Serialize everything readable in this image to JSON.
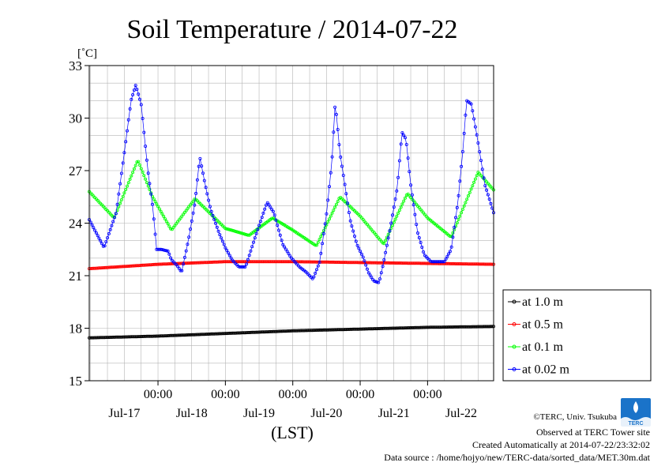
{
  "chart_data": {
    "type": "line",
    "title": "Soil Temperature / 2014-07-22",
    "ylabel": "[˚C]",
    "xlabel": "(LST)",
    "ylim": [
      15,
      33
    ],
    "yticks": [
      15,
      18,
      21,
      24,
      27,
      30,
      33
    ],
    "xlim_days": [
      -0.02,
      5.98
    ],
    "x_major_ticks": [
      {
        "label": "00:00",
        "date": "Jul-17",
        "day": 1
      },
      {
        "label": "00:00",
        "date": "Jul-18",
        "day": 2
      },
      {
        "label": "00:00",
        "date": "Jul-19",
        "day": 3
      },
      {
        "label": "00:00",
        "date": "Jul-20",
        "day": 4
      },
      {
        "label": "00:00",
        "date": "Jul-21",
        "day": 5
      }
    ],
    "x_date_labels": [
      {
        "text": "Jul-17",
        "day": 0.5
      },
      {
        "text": "Jul-18",
        "day": 1.5
      },
      {
        "text": "Jul-19",
        "day": 2.5
      },
      {
        "text": "Jul-20",
        "day": 3.5
      },
      {
        "text": "Jul-21",
        "day": 4.5
      },
      {
        "text": "Jul-22",
        "day": 5.5
      }
    ],
    "grid": true,
    "legend_position": "right",
    "series": [
      {
        "name": "at 1.0 m",
        "color": "#000000",
        "points": [
          [
            -0.02,
            17.45
          ],
          [
            1,
            17.55
          ],
          [
            2,
            17.7
          ],
          [
            3,
            17.85
          ],
          [
            4,
            17.95
          ],
          [
            5,
            18.05
          ],
          [
            5.98,
            18.1
          ]
        ]
      },
      {
        "name": "at 0.5 m",
        "color": "#ff0000",
        "points": [
          [
            -0.02,
            21.4
          ],
          [
            1,
            21.65
          ],
          [
            2,
            21.8
          ],
          [
            3,
            21.8
          ],
          [
            4,
            21.75
          ],
          [
            5,
            21.7
          ],
          [
            5.98,
            21.65
          ]
        ]
      },
      {
        "name": "at 0.1 m",
        "color": "#00ff00",
        "points": [
          [
            -0.02,
            25.8
          ],
          [
            0.35,
            24.3
          ],
          [
            0.7,
            27.6
          ],
          [
            0.92,
            25.5
          ],
          [
            1.2,
            23.6
          ],
          [
            1.55,
            25.4
          ],
          [
            2.0,
            23.7
          ],
          [
            2.35,
            23.3
          ],
          [
            2.7,
            24.3
          ],
          [
            3.0,
            23.6
          ],
          [
            3.35,
            22.7
          ],
          [
            3.7,
            25.5
          ],
          [
            4.0,
            24.4
          ],
          [
            4.35,
            22.8
          ],
          [
            4.7,
            25.7
          ],
          [
            5.0,
            24.3
          ],
          [
            5.35,
            23.2
          ],
          [
            5.75,
            26.9
          ],
          [
            5.98,
            25.9
          ]
        ]
      },
      {
        "name": "at 0.02 m",
        "color": "#0000ff",
        "points": [
          [
            -0.02,
            24.2
          ],
          [
            0.2,
            22.6
          ],
          [
            0.38,
            24.6
          ],
          [
            0.5,
            28.0
          ],
          [
            0.6,
            31.0
          ],
          [
            0.67,
            31.9
          ],
          [
            0.75,
            30.8
          ],
          [
            0.85,
            27.0
          ],
          [
            0.92,
            25.0
          ],
          [
            0.98,
            22.5
          ],
          [
            1.05,
            22.5
          ],
          [
            1.15,
            22.4
          ],
          [
            1.2,
            21.9
          ],
          [
            1.28,
            21.6
          ],
          [
            1.35,
            21.2
          ],
          [
            1.45,
            23.0
          ],
          [
            1.55,
            25.2
          ],
          [
            1.62,
            27.8
          ],
          [
            1.7,
            26.2
          ],
          [
            1.78,
            24.8
          ],
          [
            1.9,
            23.5
          ],
          [
            2.0,
            22.6
          ],
          [
            2.1,
            21.9
          ],
          [
            2.2,
            21.5
          ],
          [
            2.3,
            21.5
          ],
          [
            2.45,
            23.3
          ],
          [
            2.62,
            25.2
          ],
          [
            2.72,
            24.6
          ],
          [
            2.85,
            22.8
          ],
          [
            2.98,
            22.0
          ],
          [
            3.1,
            21.5
          ],
          [
            3.2,
            21.2
          ],
          [
            3.3,
            20.8
          ],
          [
            3.4,
            21.8
          ],
          [
            3.5,
            24.5
          ],
          [
            3.58,
            27.5
          ],
          [
            3.63,
            30.9
          ],
          [
            3.7,
            28.0
          ],
          [
            3.78,
            26.0
          ],
          [
            3.85,
            24.2
          ],
          [
            3.95,
            22.8
          ],
          [
            4.05,
            22.0
          ],
          [
            4.12,
            21.2
          ],
          [
            4.2,
            20.7
          ],
          [
            4.28,
            20.6
          ],
          [
            4.35,
            21.8
          ],
          [
            4.45,
            23.8
          ],
          [
            4.55,
            26.0
          ],
          [
            4.62,
            29.2
          ],
          [
            4.68,
            28.8
          ],
          [
            4.75,
            26.2
          ],
          [
            4.85,
            23.5
          ],
          [
            4.95,
            22.2
          ],
          [
            5.05,
            21.8
          ],
          [
            5.15,
            21.8
          ],
          [
            5.25,
            21.8
          ],
          [
            5.35,
            22.5
          ],
          [
            5.45,
            25.2
          ],
          [
            5.52,
            28.0
          ],
          [
            5.58,
            31.0
          ],
          [
            5.65,
            30.8
          ],
          [
            5.75,
            28.6
          ],
          [
            5.85,
            26.2
          ],
          [
            5.98,
            24.6
          ]
        ]
      }
    ]
  },
  "footer": {
    "copyright": "©TERC, Univ. Tsukuba",
    "observed": "Observed at TERC Tower site",
    "created": "Created Automatically at 2014-07-22/23:32:02",
    "source": "Data source : /home/hojyo/new/TERC-data/sorted_data/MET.30m.dat",
    "logo_text": "TERC"
  }
}
